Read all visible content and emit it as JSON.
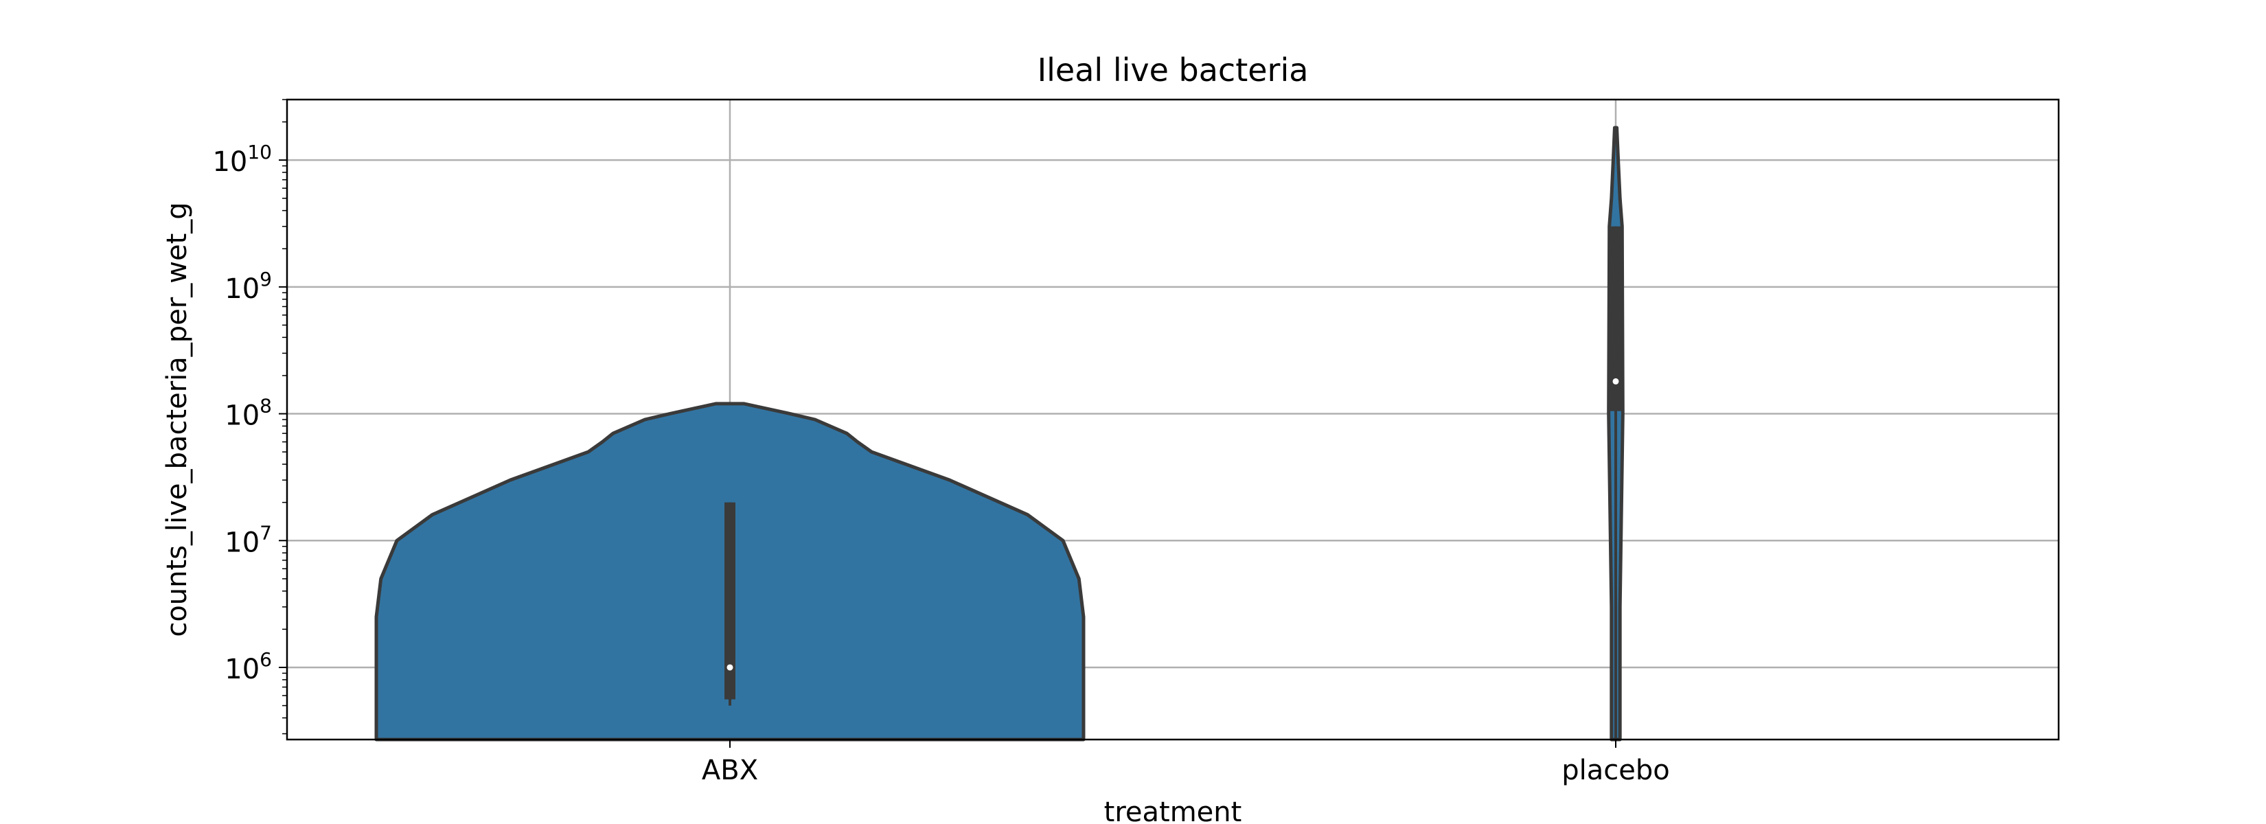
{
  "chart_data": {
    "type": "violin",
    "title": "Ileal live bacteria",
    "xlabel": "treatment",
    "ylabel": "counts_live_bacteria_per_wet_g",
    "yscale": "log",
    "ylim": [
      270000,
      30000000000
    ],
    "categories": [
      "ABX",
      "placebo"
    ],
    "yticks": [
      {
        "value": 1000000,
        "base": "10",
        "exp": "6"
      },
      {
        "value": 10000000,
        "base": "10",
        "exp": "7"
      },
      {
        "value": 100000000,
        "base": "10",
        "exp": "8"
      },
      {
        "value": 1000000000,
        "base": "10",
        "exp": "9"
      },
      {
        "value": 10000000000,
        "base": "10",
        "exp": "10"
      }
    ],
    "grid": true,
    "fill_color": "#3274a1",
    "outline_color": "#3a3a3a",
    "grid_color": "#b0b0b0",
    "series": [
      {
        "category": "ABX",
        "median": 1000000,
        "q1": 560000,
        "q3": 20000000,
        "whisker_low": 500000,
        "whisker_high": 20000000,
        "density": [
          [
            270000,
            0.998
          ],
          [
            2500000,
            0.998
          ],
          [
            5000000,
            0.985
          ],
          [
            10000000,
            0.94
          ],
          [
            16000000,
            0.84
          ],
          [
            30000000,
            0.62
          ],
          [
            50000000,
            0.4
          ],
          [
            60000000,
            0.36
          ],
          [
            70000000,
            0.33
          ],
          [
            90000000,
            0.24
          ],
          [
            100000000,
            0.17
          ],
          [
            120000000,
            0.04
          ]
        ]
      },
      {
        "category": "placebo",
        "median": 180000000,
        "q1": 105000000,
        "q3": 3000000000,
        "whisker_low": 270000,
        "whisker_high": 3000000000,
        "density": [
          [
            270000,
            0.012
          ],
          [
            3000000,
            0.012
          ],
          [
            100000000,
            0.02
          ],
          [
            3000000000,
            0.018
          ],
          [
            5000000000,
            0.012
          ],
          [
            10000000000,
            0.007
          ],
          [
            18000000000,
            0.003
          ]
        ]
      }
    ]
  }
}
